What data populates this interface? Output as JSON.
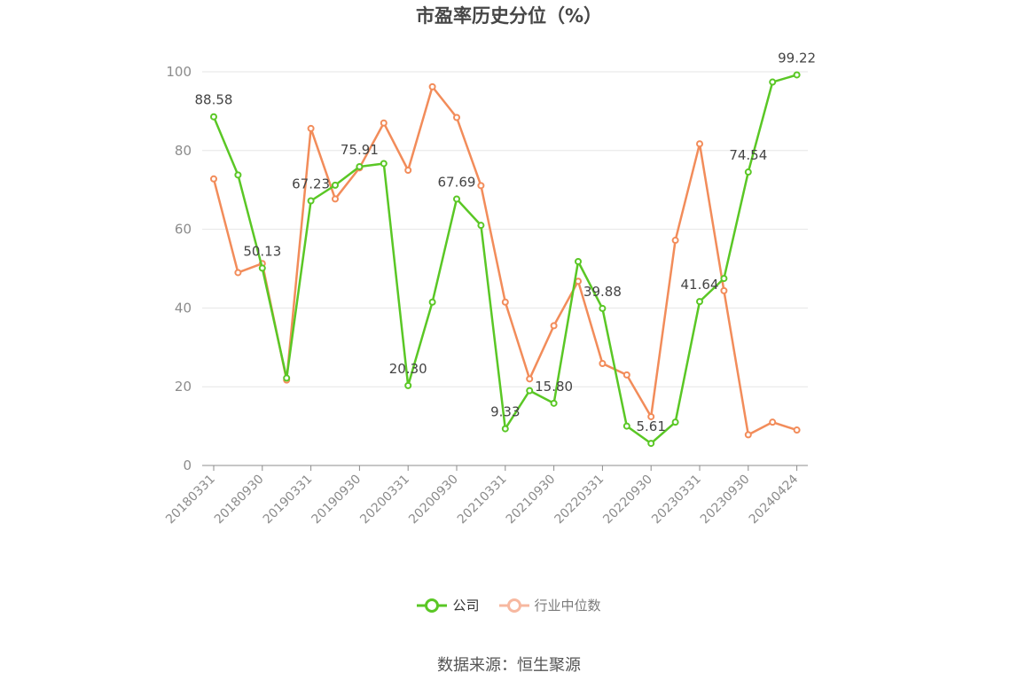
{
  "chart_data": {
    "type": "line",
    "title": "市盈率历史分位（%）",
    "ylim": [
      0,
      100
    ],
    "yticks": [
      0,
      20,
      40,
      60,
      80,
      100
    ],
    "x_tick_labels": [
      "20180331",
      "20180930",
      "20190331",
      "20190930",
      "20200331",
      "20200930",
      "20210331",
      "20210930",
      "20220331",
      "20220930",
      "20230331",
      "20230930",
      "20240424"
    ],
    "x": [
      "20180331",
      "20180630",
      "20180930",
      "20181231",
      "20190331",
      "20190630",
      "20190930",
      "20191231",
      "20200331",
      "20200630",
      "20200930",
      "20201231",
      "20210331",
      "20210630",
      "20210930",
      "20211231",
      "20220331",
      "20220630",
      "20220930",
      "20221231",
      "20230331",
      "20230630",
      "20230930",
      "20231231",
      "20240424"
    ],
    "series": [
      {
        "name": "公司",
        "color": "#5ac725",
        "values": [
          88.58,
          73.8,
          50.13,
          22.2,
          67.23,
          71.2,
          75.91,
          76.7,
          20.3,
          41.5,
          67.69,
          61.0,
          9.33,
          19.0,
          15.8,
          51.8,
          39.88,
          10.0,
          5.61,
          11.0,
          41.64,
          47.5,
          74.54,
          97.4,
          99.22
        ],
        "data_labels": {
          "0": "88.58",
          "2": "50.13",
          "4": "67.23",
          "6": "75.91",
          "8": "20.30",
          "10": "67.69",
          "12": "9.33",
          "14": "15.80",
          "16": "39.88",
          "18": "5.61",
          "20": "41.64",
          "22": "74.54",
          "24": "99.22"
        }
      },
      {
        "name": "行业中位数",
        "color": "#f28c5a",
        "values": [
          72.8,
          49.0,
          51.3,
          21.7,
          85.6,
          67.7,
          75.6,
          87.0,
          75.0,
          96.2,
          88.4,
          71.1,
          41.5,
          22.0,
          35.5,
          46.8,
          25.9,
          23.0,
          12.4,
          57.2,
          81.7,
          44.4,
          7.8,
          11.0,
          9.0
        ]
      }
    ],
    "legend": [
      {
        "name": "公司",
        "color": "#5ac725",
        "active": true
      },
      {
        "name": "行业中位数",
        "color": "#f7b8a0",
        "active": false
      }
    ],
    "grid": true,
    "legend_position": "bottom-center"
  },
  "source": "数据来源：恒生聚源"
}
